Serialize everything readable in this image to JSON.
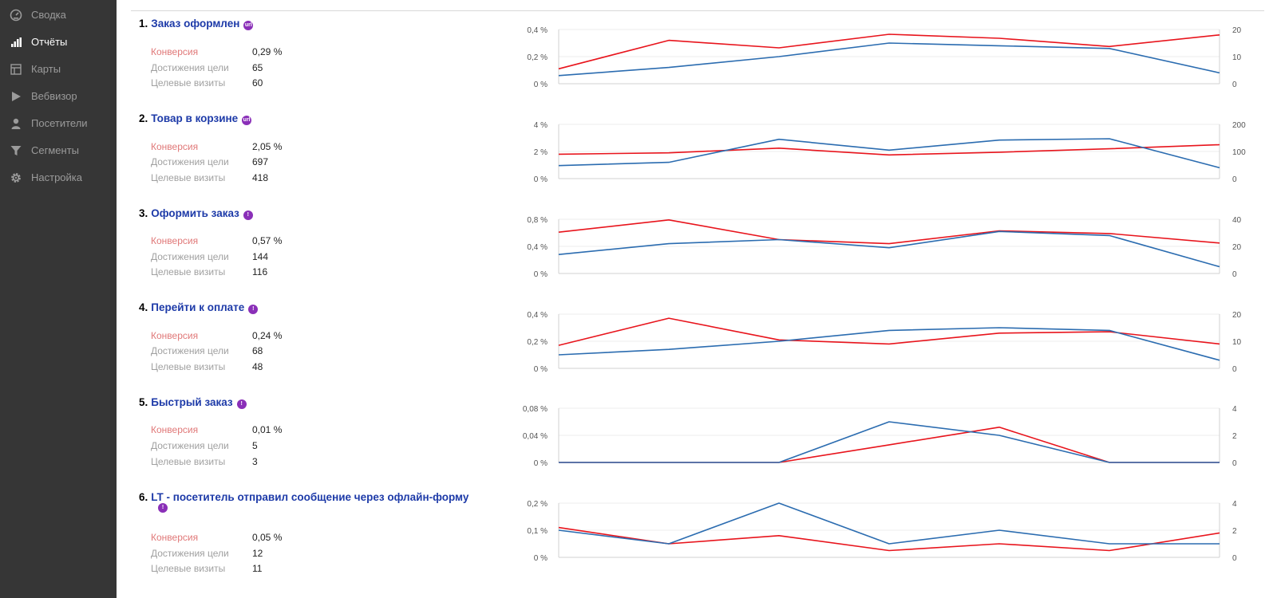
{
  "sidebar": {
    "items": [
      {
        "label": "Сводка",
        "icon": "gauge-icon",
        "active": false
      },
      {
        "label": "Отчёты",
        "icon": "bar-chart-icon",
        "active": true
      },
      {
        "label": "Карты",
        "icon": "map-grid-icon",
        "active": false
      },
      {
        "label": "Вебвизор",
        "icon": "play-icon",
        "active": false
      },
      {
        "label": "Посетители",
        "icon": "person-icon",
        "active": false
      },
      {
        "label": "Сегменты",
        "icon": "filter-icon",
        "active": false
      },
      {
        "label": "Настройка",
        "icon": "gear-icon",
        "active": false
      }
    ]
  },
  "metric_labels": {
    "conversion": "Конверсия",
    "reaches": "Достижения цели",
    "visits": "Целевые визиты"
  },
  "colors": {
    "conversion_line": "#e8141c",
    "visits_line": "#2b6cb0",
    "title_link": "#1d3aa8",
    "badge": "#8a2fb8",
    "sidebar_bg": "#363636"
  },
  "goals": [
    {
      "number": "1.",
      "name": "Заказ оформлен",
      "badge_icon": "url-icon",
      "conversion": "0,29 %",
      "reaches": "65",
      "visits": "60",
      "chart_data": {
        "type": "line",
        "left_ticks": [
          "0,4 %",
          "0,2 %",
          "0 %"
        ],
        "left_max": 0.4,
        "right_ticks": [
          "20",
          "10",
          "0"
        ],
        "right_max": 20,
        "series": [
          {
            "axis": "left",
            "values": [
              0.11,
              0.32,
              0.265,
              0.365,
              0.335,
              0.275,
              0.36
            ]
          },
          {
            "axis": "right",
            "values": [
              3,
              6,
              10,
              15,
              14,
              13,
              4
            ]
          }
        ]
      }
    },
    {
      "number": "2.",
      "name": "Товар в корзине",
      "badge_icon": "url-icon",
      "conversion": "2,05 %",
      "reaches": "697",
      "visits": "418",
      "chart_data": {
        "type": "line",
        "left_ticks": [
          "4 %",
          "2 %",
          "0 %"
        ],
        "left_max": 4,
        "right_ticks": [
          "200",
          "100",
          "0"
        ],
        "right_max": 200,
        "series": [
          {
            "axis": "left",
            "values": [
              1.8,
              1.9,
              2.25,
              1.75,
              1.95,
              2.2,
              2.5
            ]
          },
          {
            "axis": "right",
            "values": [
              48,
              60,
              145,
              105,
              142,
              147,
              40
            ]
          }
        ]
      }
    },
    {
      "number": "3.",
      "name": "Оформить заказ",
      "badge_icon": "exclamation-icon",
      "conversion": "0,57 %",
      "reaches": "144",
      "visits": "116",
      "chart_data": {
        "type": "line",
        "left_ticks": [
          "0,8 %",
          "0,4 %",
          "0 %"
        ],
        "left_max": 0.8,
        "right_ticks": [
          "40",
          "20",
          "0"
        ],
        "right_max": 40,
        "series": [
          {
            "axis": "left",
            "values": [
              0.61,
              0.79,
              0.5,
              0.44,
              0.63,
              0.59,
              0.45
            ]
          },
          {
            "axis": "right",
            "values": [
              14,
              22,
              25,
              19,
              31,
              28,
              5
            ]
          }
        ]
      }
    },
    {
      "number": "4.",
      "name": "Перейти к оплате",
      "badge_icon": "exclamation-icon",
      "conversion": "0,24 %",
      "reaches": "68",
      "visits": "48",
      "chart_data": {
        "type": "line",
        "left_ticks": [
          "0,4 %",
          "0,2 %",
          "0 %"
        ],
        "left_max": 0.4,
        "right_ticks": [
          "20",
          "10",
          "0"
        ],
        "right_max": 20,
        "series": [
          {
            "axis": "left",
            "values": [
              0.17,
              0.37,
              0.21,
              0.18,
              0.26,
              0.27,
              0.18
            ]
          },
          {
            "axis": "right",
            "values": [
              5,
              7,
              10,
              14,
              15,
              14,
              3
            ]
          }
        ]
      }
    },
    {
      "number": "5.",
      "name": "Быстрый заказ",
      "badge_icon": "exclamation-icon",
      "conversion": "0,01 %",
      "reaches": "5",
      "visits": "3",
      "chart_data": {
        "type": "line",
        "left_ticks": [
          "0,08 %",
          "0,04 %",
          "0 %"
        ],
        "left_max": 0.08,
        "right_ticks": [
          "4",
          "2",
          "0"
        ],
        "right_max": 4,
        "series": [
          {
            "axis": "left",
            "values": [
              0,
              0,
              0,
              0.026,
              0.052,
              0,
              0
            ]
          },
          {
            "axis": "right",
            "values": [
              0,
              0,
              0,
              3,
              2,
              0,
              0
            ]
          }
        ]
      }
    },
    {
      "number": "6.",
      "name": "LT - посетитель отправил сообщение через офлайн-форму",
      "badge_icon": "exclamation-icon",
      "conversion": "0,05 %",
      "reaches": "12",
      "visits": "11",
      "chart_data": {
        "type": "line",
        "left_ticks": [
          "0,2 %",
          "0,1 %",
          "0 %"
        ],
        "left_max": 0.2,
        "right_ticks": [
          "4",
          "2",
          "0"
        ],
        "right_max": 4,
        "series": [
          {
            "axis": "left",
            "values": [
              0.11,
              0.05,
              0.08,
              0.025,
              0.05,
              0.025,
              0.09
            ]
          },
          {
            "axis": "right",
            "values": [
              2,
              1,
              4,
              1,
              2,
              1,
              1
            ]
          }
        ]
      }
    }
  ]
}
